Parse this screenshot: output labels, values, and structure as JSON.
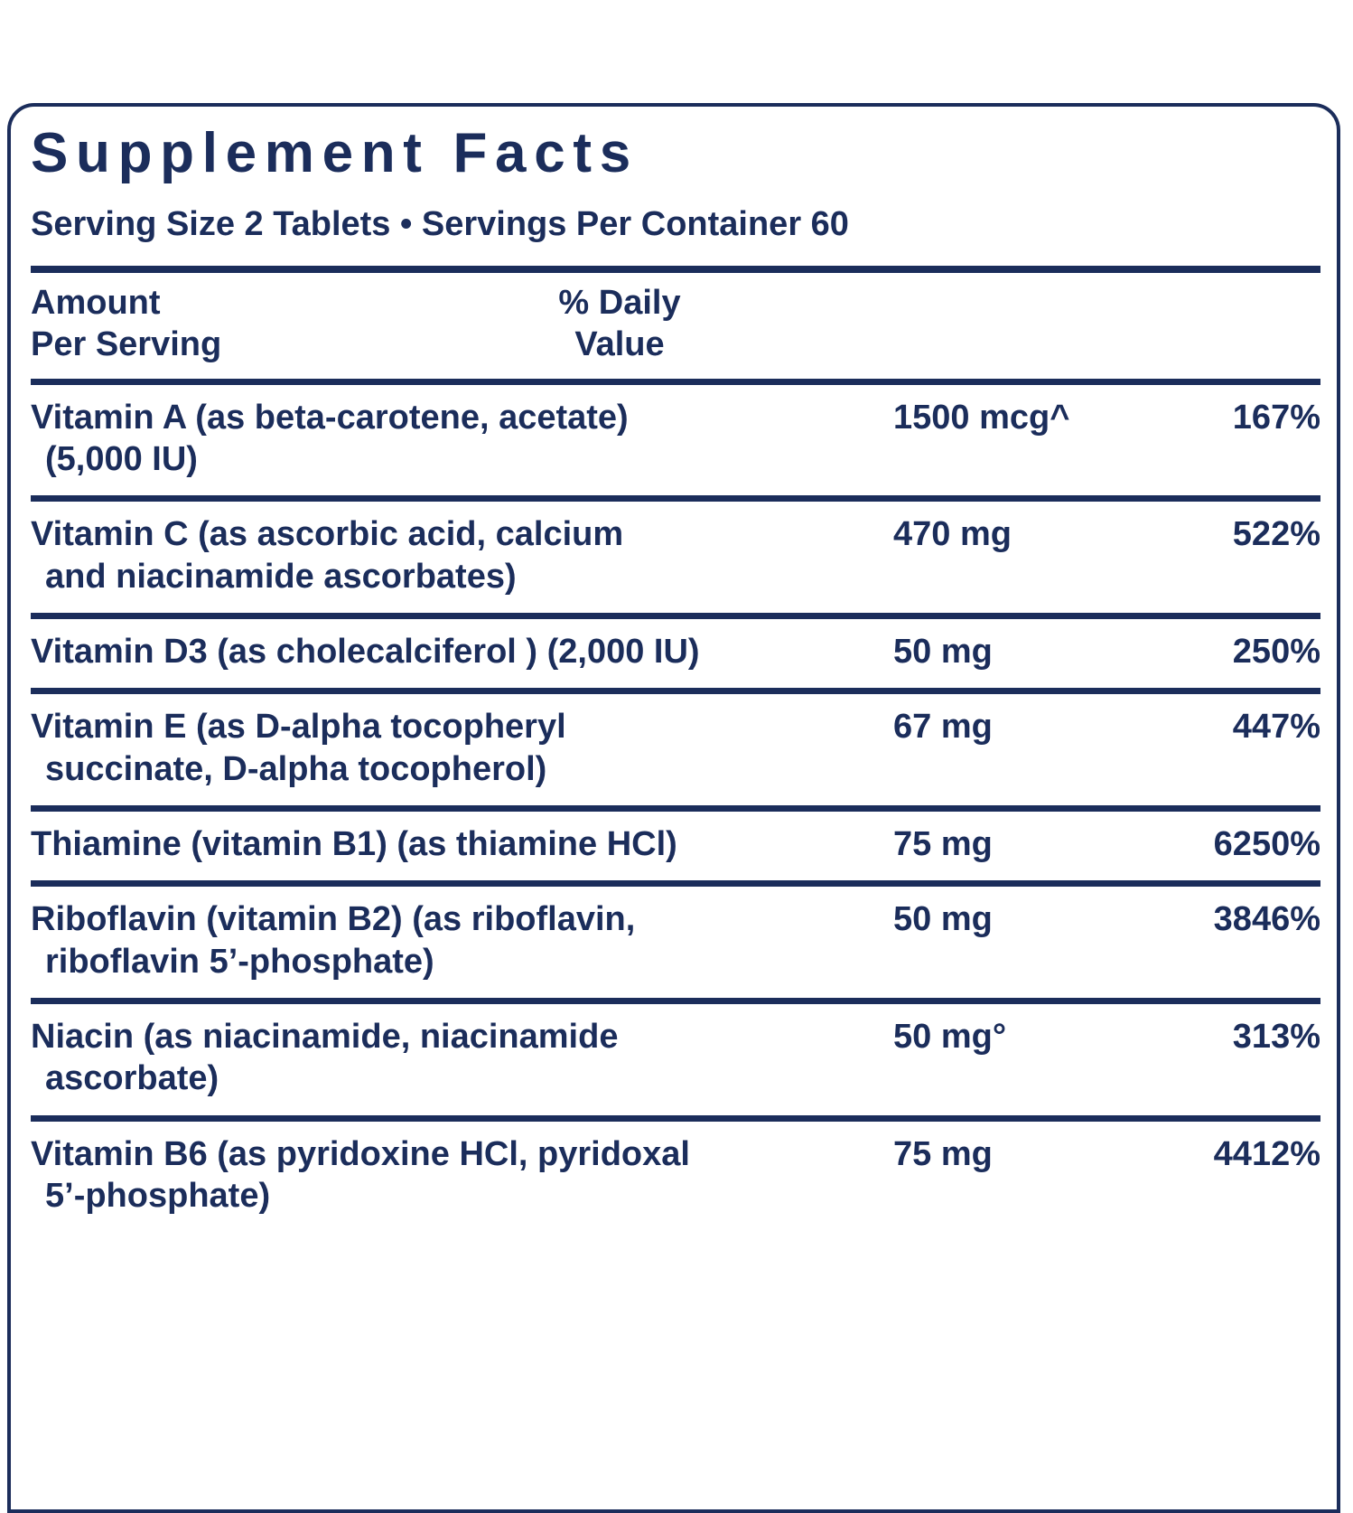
{
  "colors": {
    "ink": "#1b2d5b",
    "background": "#ffffff"
  },
  "panel": {
    "title": "Supplement Facts",
    "serving_info": "Serving Size 2 Tablets • Servings Per Container 60",
    "columns": {
      "amount_label_line1": "Amount",
      "amount_label_line2": "Per Serving",
      "daily_value_label_line1": "% Daily",
      "daily_value_label_line2": "Value"
    },
    "rows": [
      {
        "line1": "Vitamin A (as beta-carotene, acetate)",
        "line2": "(5,000 IU)",
        "amount": "1500 mcg^",
        "daily_value": "167%"
      },
      {
        "line1": "Vitamin C (as ascorbic acid, calcium",
        "line2": "and niacinamide ascorbates)",
        "amount": "470 mg",
        "daily_value": "522%"
      },
      {
        "line1": "Vitamin D3 (as cholecalciferol ) (2,000 IU)",
        "line2": "",
        "amount": "50 mg",
        "daily_value": "250%"
      },
      {
        "line1": "Vitamin E (as D-alpha tocopheryl",
        "line2": "succinate, D-alpha tocopherol)",
        "amount": "67 mg",
        "daily_value": "447%"
      },
      {
        "line1": "Thiamine (vitamin B1) (as thiamine HCl)",
        "line2": "",
        "amount": "75 mg",
        "daily_value": "6250%"
      },
      {
        "line1": "Riboflavin (vitamin B2) (as riboflavin,",
        "line2": "riboflavin 5’-phosphate)",
        "amount": "50 mg",
        "daily_value": "3846%"
      },
      {
        "line1": "Niacin (as niacinamide, niacinamide",
        "line2": "ascorbate)",
        "amount": "50 mg°",
        "daily_value": "313%"
      },
      {
        "line1": "Vitamin B6 (as pyridoxine HCl, pyridoxal",
        "line2": "5’-phosphate)",
        "amount": "75 mg",
        "daily_value": "4412%"
      }
    ]
  }
}
